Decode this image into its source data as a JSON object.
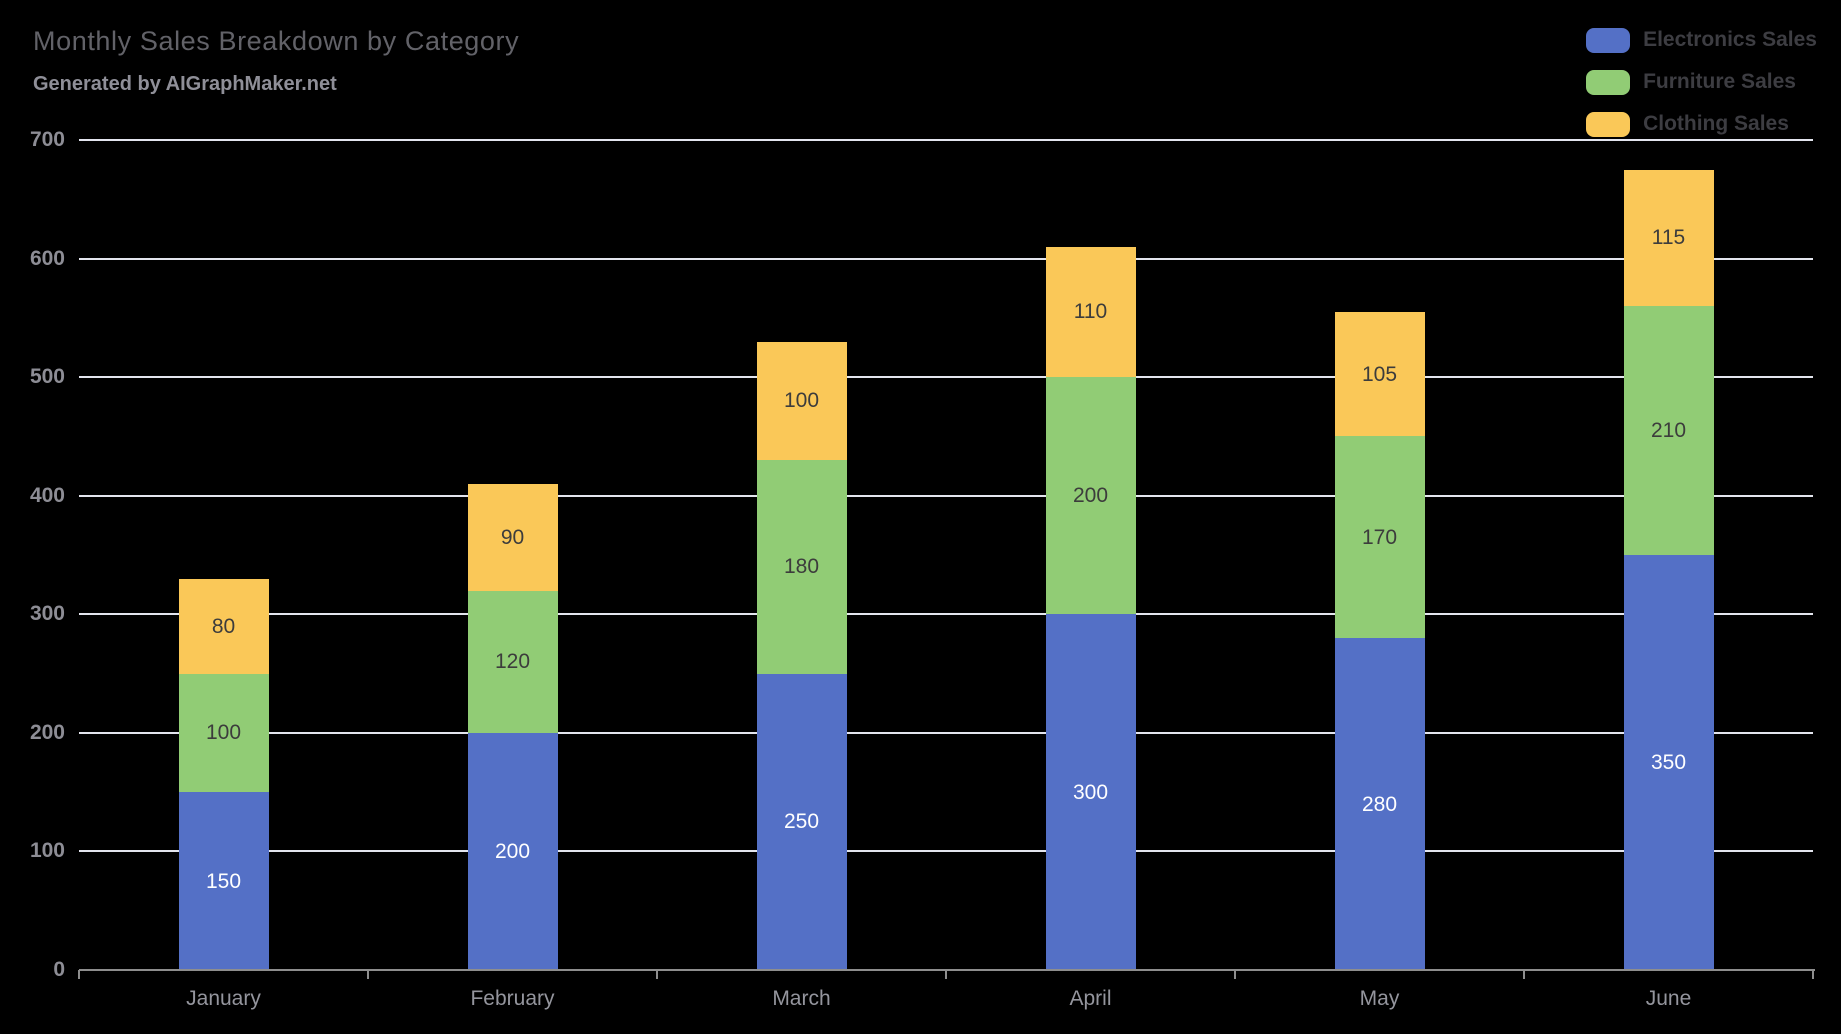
{
  "header": {
    "title": "Monthly Sales Breakdown by Category",
    "subtitle": "Generated by AIGraphMaker.net"
  },
  "colors": {
    "background": "#000000",
    "grid": "#E3E5EE",
    "axis": "#8E8E8E",
    "title_text": "#626268",
    "subtitle_text": "#8F8F98",
    "legend_text": "#3D3D42",
    "y_label_text": "#8D8D95",
    "x_label_text": "#94959D"
  },
  "chart_data": {
    "type": "bar",
    "stacked": true,
    "title": "Monthly Sales Breakdown by Category",
    "subtitle": "Generated by AIGraphMaker.net",
    "categories": [
      "January",
      "February",
      "March",
      "April",
      "May",
      "June"
    ],
    "series": [
      {
        "name": "Electronics Sales",
        "color": "#5470C6",
        "label_color": "#FFFFFF",
        "values": [
          150,
          200,
          250,
          300,
          280,
          350
        ]
      },
      {
        "name": "Furniture Sales",
        "color": "#91CC75",
        "label_color": "#3C3C3C",
        "values": [
          100,
          120,
          180,
          200,
          170,
          210
        ]
      },
      {
        "name": "Clothing Sales",
        "color": "#FAC858",
        "label_color": "#3C3C3C",
        "values": [
          80,
          90,
          100,
          110,
          105,
          115
        ]
      }
    ],
    "totals": [
      330,
      410,
      530,
      610,
      555,
      675
    ],
    "xlabel": "",
    "ylabel": "",
    "ylim": [
      0,
      700
    ],
    "yticks": [
      0,
      100,
      200,
      300,
      400,
      500,
      600,
      700
    ],
    "grid": true,
    "legend_position": "top-right"
  }
}
